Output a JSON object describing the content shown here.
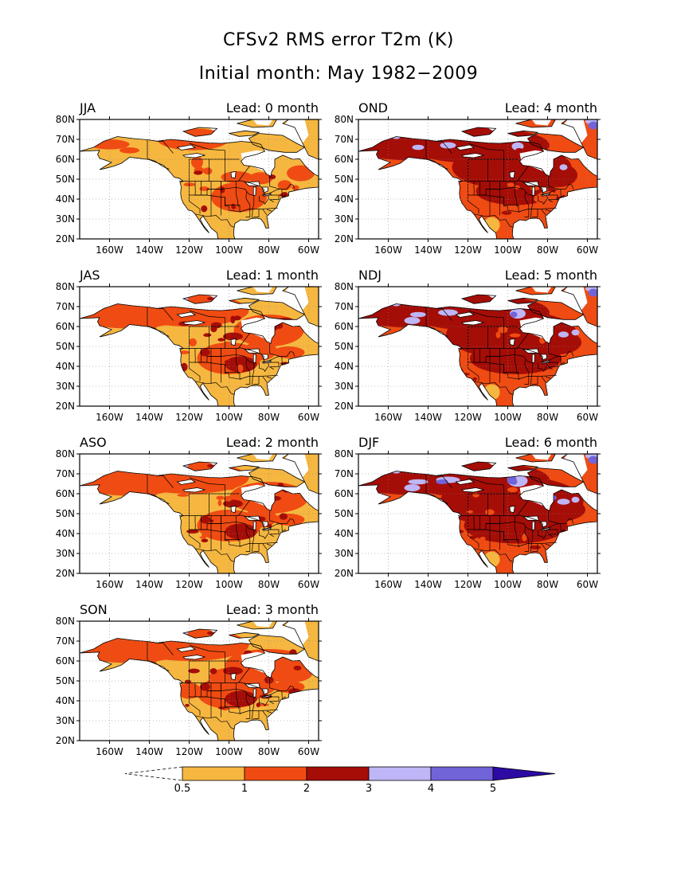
{
  "title": "CFSv2 RMS error T2m (K)",
  "subtitle": "Initial month: May 1982−2009",
  "colors": {
    "c05_1": "#f6b740",
    "c1_2": "#f04b12",
    "c2_3": "#a50d07",
    "c3_4": "#beb6f6",
    "c4_5": "#7164d8",
    "c5p": "#2c0aa3",
    "ocean": "#ffffff",
    "coast": "#000000"
  },
  "lat_labels": [
    "80N",
    "70N",
    "60N",
    "50N",
    "40N",
    "30N",
    "20N"
  ],
  "lon_labels": [
    "160W",
    "140W",
    "120W",
    "100W",
    "80W",
    "60W"
  ],
  "panels": [
    {
      "season": "JJA",
      "lead_label": "Lead: 0 month",
      "lead": 0
    },
    {
      "season": "JAS",
      "lead_label": "Lead: 1 month",
      "lead": 1
    },
    {
      "season": "ASO",
      "lead_label": "Lead: 2 month",
      "lead": 2
    },
    {
      "season": "SON",
      "lead_label": "Lead: 3 month",
      "lead": 3
    },
    {
      "season": "OND",
      "lead_label": "Lead: 4 month",
      "lead": 4
    },
    {
      "season": "NDJ",
      "lead_label": "Lead: 5 month",
      "lead": 5
    },
    {
      "season": "DJF",
      "lead_label": "Lead: 6 month",
      "lead": 6
    }
  ],
  "colorbar": {
    "labels": [
      "0.5",
      "1",
      "2",
      "3",
      "4",
      "5"
    ]
  }
}
